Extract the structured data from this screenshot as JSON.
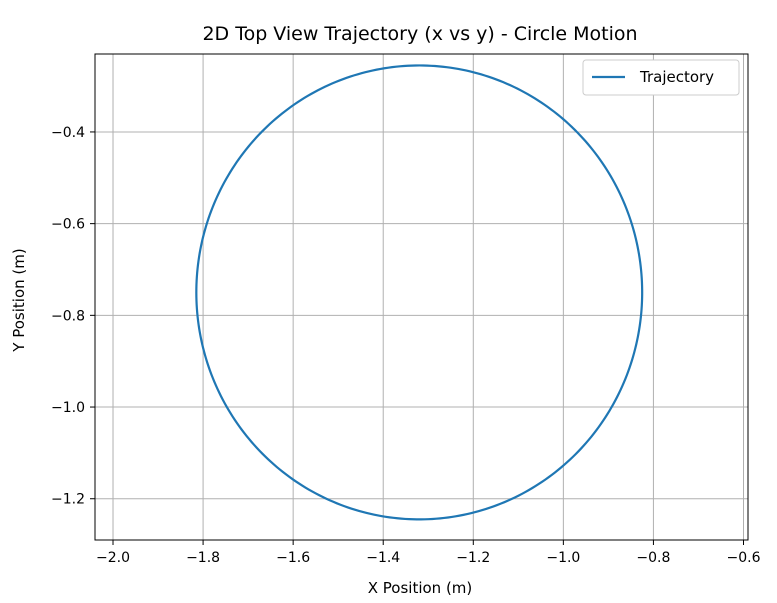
{
  "chart_data": {
    "type": "line",
    "title": "2D Top View Trajectory (x vs y) - Circle Motion",
    "xlabel": "X Position (m)",
    "ylabel": "Y Position (m)",
    "xlim": [
      -2.04,
      -0.59
    ],
    "ylim": [
      -1.29,
      -0.23
    ],
    "xticks": [
      -2.0,
      -1.8,
      -1.6,
      -1.4,
      -1.2,
      -1.0,
      -0.8,
      -0.6
    ],
    "xtick_labels": [
      "−2.0",
      "−1.8",
      "−1.6",
      "−1.4",
      "−1.2",
      "−1.0",
      "−0.8",
      "−0.6"
    ],
    "yticks": [
      -0.4,
      -0.6,
      -0.8,
      -1.0,
      -1.2
    ],
    "ytick_labels": [
      "−0.4",
      "−0.6",
      "−0.8",
      "−1.0",
      "−1.2"
    ],
    "grid": true,
    "legend": {
      "placement": "top-right",
      "entries": [
        "Trajectory"
      ]
    },
    "series": [
      {
        "name": "Trajectory",
        "color": "#1f77b4",
        "center": [
          -1.32,
          -0.75
        ],
        "radius_x": 0.495,
        "radius_y": 0.495,
        "points_x": [
          -1.71,
          -1.78,
          -1.81,
          -1.78,
          -1.69,
          -1.56,
          -1.4,
          -1.32,
          -1.15,
          -1.0,
          -0.9,
          -0.83,
          -0.83,
          -0.9,
          -1.0,
          -1.12,
          -1.32,
          -1.52,
          -1.62,
          -1.72
        ],
        "points_y": [
          -0.445,
          -0.58,
          -0.75,
          -0.92,
          -1.06,
          -1.17,
          -1.23,
          -1.245,
          -1.22,
          -1.14,
          -1.01,
          -0.85,
          -0.65,
          -0.49,
          -0.36,
          -0.285,
          -0.255,
          -0.295,
          -0.355,
          -0.455
        ]
      }
    ]
  }
}
